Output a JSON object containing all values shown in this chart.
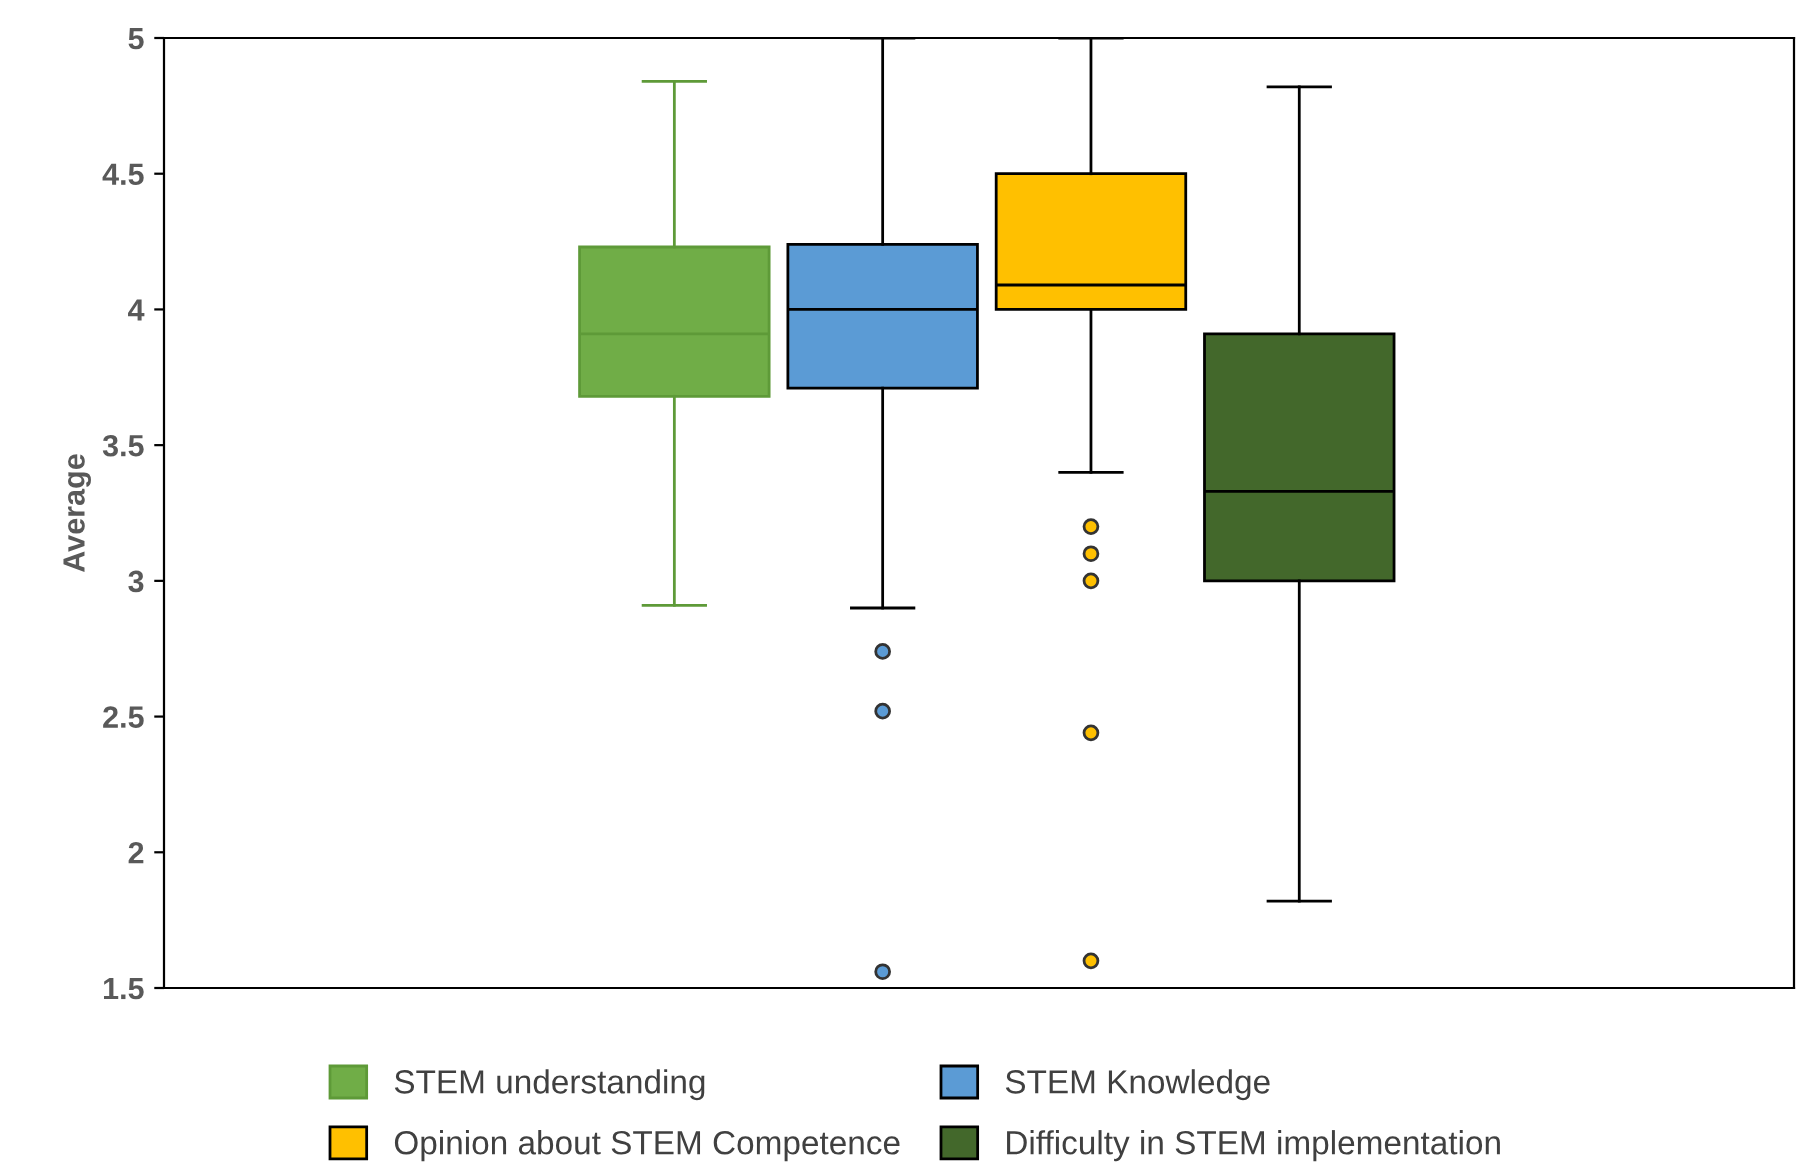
{
  "chart_data": {
    "type": "box",
    "ylabel": "Average",
    "categories": [
      null
    ],
    "ylim": [
      1.5,
      5
    ],
    "yticks": [
      1.5,
      2,
      2.5,
      3,
      3.5,
      4,
      4.5,
      5
    ],
    "grid": false,
    "legend": "bottom",
    "series": [
      {
        "name": "STEM understanding",
        "color": "#70ad47",
        "boxes": [
          {
            "low": 2.91,
            "q1": 3.68,
            "median": 3.91,
            "q3": 4.23,
            "high": 4.84
          }
        ]
      },
      {
        "name": "STEM Knowledge",
        "color": "#5b9bd5",
        "boxes": [
          {
            "low": 2.9,
            "q1": 3.71,
            "median": 4.0,
            "q3": 4.24,
            "high": 5,
            "outliers": [
              2.74,
              2.52,
              1.56
            ]
          }
        ]
      },
      {
        "name": "Opinion about STEM Competence",
        "color": "#ffc000",
        "boxes": [
          {
            "low": 3.4,
            "q1": 4.0,
            "median": 4.09,
            "q3": 4.5,
            "high": 5,
            "outliers": [
              3.2,
              3.1,
              3.0,
              2.44,
              1.6
            ]
          }
        ]
      },
      {
        "name": "Difficulty in STEM implementation",
        "color": "#43682b",
        "boxes": [
          {
            "low": 1.82,
            "q1": 3.0,
            "median": 3.33,
            "q3": 3.91,
            "high": 4.82
          }
        ]
      }
    ]
  }
}
